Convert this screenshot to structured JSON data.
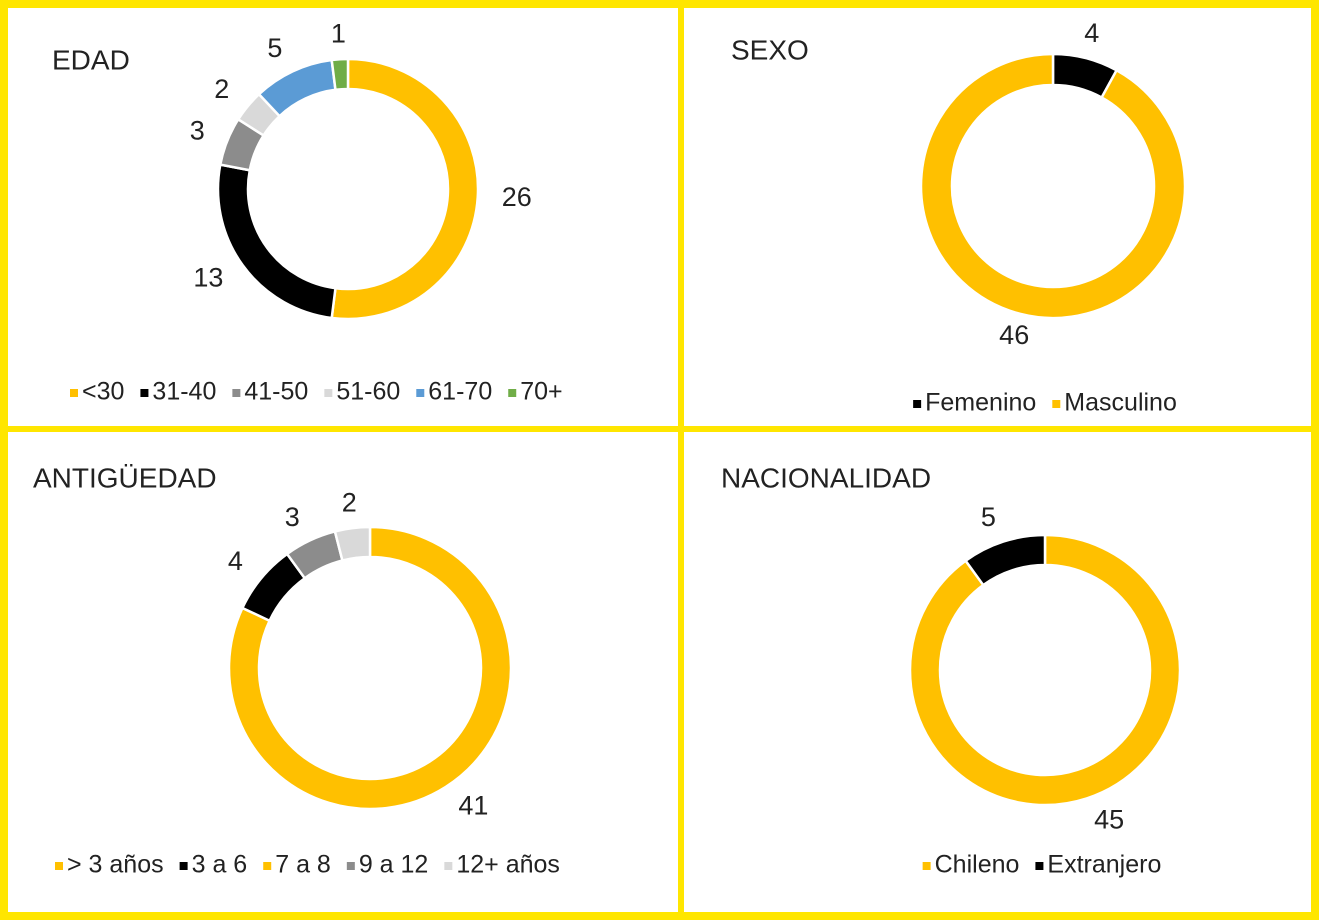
{
  "chart_data": [
    {
      "type": "donut",
      "title": "EDAD",
      "categories": [
        "<30",
        "31-40",
        "41-50",
        "51-60",
        "61-70",
        "70+"
      ],
      "values": [
        26,
        13,
        3,
        2,
        5,
        1
      ],
      "colors": [
        "#ffc000",
        "#000000",
        "#8c8c8c",
        "#d9d9d9",
        "#5b9bd5",
        "#70ad47"
      ]
    },
    {
      "type": "donut",
      "title": "SEXO",
      "categories": [
        "Femenino",
        "Masculino"
      ],
      "values": [
        4,
        46
      ],
      "colors": [
        "#000000",
        "#ffc000"
      ]
    },
    {
      "type": "donut",
      "title": "ANTIGÜEDAD",
      "categories": [
        "> 3 años",
        "3 a 6",
        "7 a 8",
        "9 a 12",
        "12+ años"
      ],
      "values": [
        41,
        4,
        0,
        3,
        2
      ],
      "colors": [
        "#ffc000",
        "#000000",
        "#ffc000",
        "#8c8c8c",
        "#d9d9d9"
      ]
    },
    {
      "type": "donut",
      "title": "NACIONALIDAD",
      "categories": [
        "Chileno",
        "Extranjero"
      ],
      "values": [
        45,
        5
      ],
      "colors": [
        "#ffc000",
        "#000000"
      ]
    }
  ]
}
